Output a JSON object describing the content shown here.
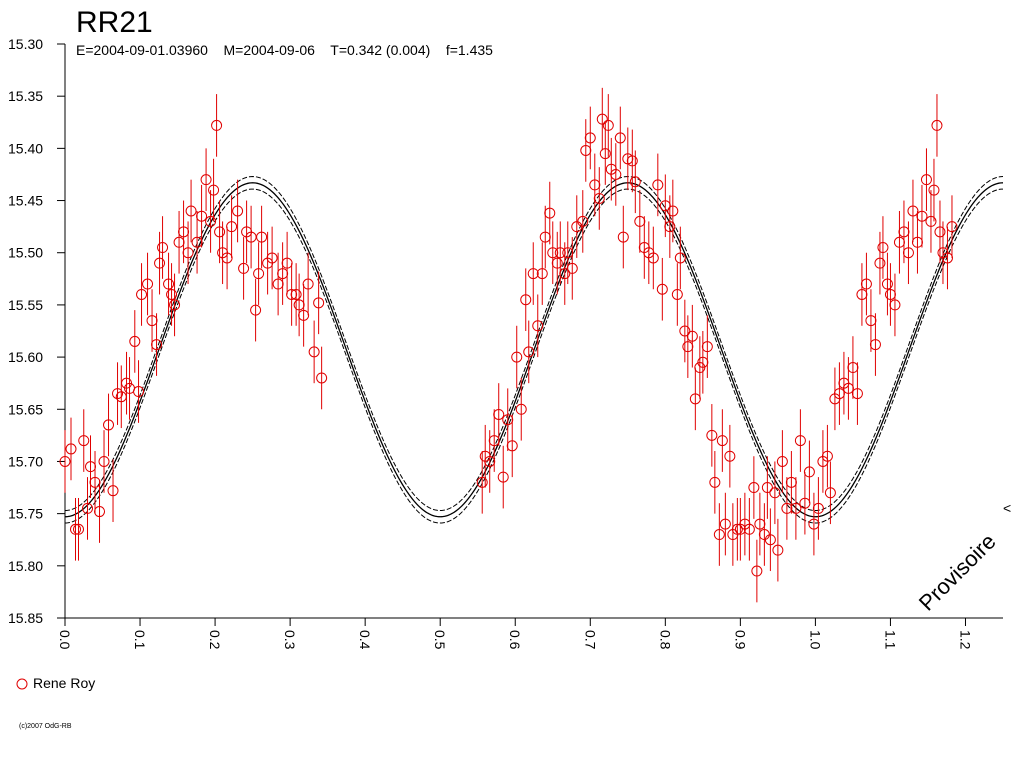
{
  "chart_data": {
    "type": "scatter",
    "title": "RR21",
    "subtitle": "E=2004-09-01.03960    M=2004-09-06    T=0.342 (0.004)    f=1.435",
    "xlim": [
      0.0,
      1.25
    ],
    "ylim": [
      15.3,
      15.85
    ],
    "y_inverted": true,
    "x_ticks": [
      "0.0",
      "0.1",
      "0.2",
      "0.3",
      "0.4",
      "0.5",
      "0.6",
      "0.7",
      "0.8",
      "0.9",
      "1.0",
      "1.1",
      "1.2"
    ],
    "y_ticks": [
      "15.30",
      "15.35",
      "15.40",
      "15.45",
      "15.50",
      "15.55",
      "15.60",
      "15.65",
      "15.70",
      "15.75",
      "15.80",
      "15.85"
    ],
    "grid": false,
    "legend_position": "bottom-left",
    "watermark": "Provisoire",
    "corner_mark": "<",
    "copyright": "(c)2007 OdG-RB",
    "fit_curve": {
      "model": "sinusoid",
      "mean": 15.593,
      "amplitude": 0.16,
      "period": 0.5,
      "phase_of_max_brightness": 0.25,
      "band_halfwidth": 0.006,
      "color": "#000000"
    },
    "series": [
      {
        "name": "Rene Roy",
        "color": "#e00000",
        "marker": "open-circle",
        "error": 0.03,
        "points": [
          [
            0.0,
            15.7
          ],
          [
            0.008,
            15.688
          ],
          [
            0.014,
            15.765
          ],
          [
            0.018,
            15.765
          ],
          [
            0.025,
            15.68
          ],
          [
            0.03,
            15.745
          ],
          [
            0.034,
            15.705
          ],
          [
            0.04,
            15.72
          ],
          [
            0.046,
            15.748
          ],
          [
            0.052,
            15.7
          ],
          [
            0.058,
            15.665
          ],
          [
            0.064,
            15.728
          ],
          [
            0.07,
            15.635
          ],
          [
            0.075,
            15.638
          ],
          [
            0.082,
            15.625
          ],
          [
            0.086,
            15.63
          ],
          [
            0.093,
            15.585
          ],
          [
            0.098,
            15.633
          ],
          [
            0.102,
            15.54
          ],
          [
            0.11,
            15.53
          ],
          [
            0.116,
            15.565
          ],
          [
            0.122,
            15.588
          ],
          [
            0.126,
            15.51
          ],
          [
            0.13,
            15.495
          ],
          [
            0.138,
            15.53
          ],
          [
            0.142,
            15.54
          ],
          [
            0.146,
            15.55
          ],
          [
            0.152,
            15.49
          ],
          [
            0.158,
            15.48
          ],
          [
            0.164,
            15.5
          ],
          [
            0.168,
            15.46
          ],
          [
            0.176,
            15.49
          ],
          [
            0.182,
            15.465
          ],
          [
            0.188,
            15.43
          ],
          [
            0.194,
            15.47
          ],
          [
            0.198,
            15.44
          ],
          [
            0.202,
            15.378
          ],
          [
            0.206,
            15.48
          ],
          [
            0.21,
            15.5
          ],
          [
            0.216,
            15.505
          ],
          [
            0.222,
            15.475
          ],
          [
            0.23,
            15.46
          ],
          [
            0.238,
            15.515
          ],
          [
            0.242,
            15.48
          ],
          [
            0.248,
            15.485
          ],
          [
            0.254,
            15.555
          ],
          [
            0.258,
            15.52
          ],
          [
            0.262,
            15.485
          ],
          [
            0.27,
            15.51
          ],
          [
            0.276,
            15.505
          ],
          [
            0.284,
            15.53
          ],
          [
            0.29,
            15.52
          ],
          [
            0.296,
            15.51
          ],
          [
            0.302,
            15.54
          ],
          [
            0.308,
            15.54
          ],
          [
            0.312,
            15.55
          ],
          [
            0.318,
            15.56
          ],
          [
            0.324,
            15.53
          ],
          [
            0.332,
            15.595
          ],
          [
            0.338,
            15.548
          ],
          [
            0.342,
            15.62
          ],
          [
            0.556,
            15.72
          ],
          [
            0.56,
            15.695
          ],
          [
            0.566,
            15.7
          ],
          [
            0.572,
            15.68
          ],
          [
            0.578,
            15.655
          ],
          [
            0.584,
            15.715
          ],
          [
            0.59,
            15.66
          ],
          [
            0.596,
            15.685
          ],
          [
            0.602,
            15.6
          ],
          [
            0.608,
            15.65
          ],
          [
            0.614,
            15.545
          ],
          [
            0.618,
            15.595
          ],
          [
            0.624,
            15.52
          ],
          [
            0.63,
            15.57
          ],
          [
            0.636,
            15.52
          ],
          [
            0.64,
            15.485
          ],
          [
            0.646,
            15.462
          ],
          [
            0.65,
            15.5
          ],
          [
            0.656,
            15.51
          ],
          [
            0.66,
            15.5
          ],
          [
            0.666,
            15.52
          ],
          [
            0.67,
            15.5
          ],
          [
            0.676,
            15.515
          ],
          [
            0.682,
            15.475
          ],
          [
            0.69,
            15.47
          ],
          [
            0.694,
            15.402
          ],
          [
            0.7,
            15.39
          ],
          [
            0.706,
            15.435
          ],
          [
            0.712,
            15.448
          ],
          [
            0.716,
            15.372
          ],
          [
            0.72,
            15.405
          ],
          [
            0.724,
            15.378
          ],
          [
            0.728,
            15.42
          ],
          [
            0.734,
            15.425
          ],
          [
            0.74,
            15.39
          ],
          [
            0.744,
            15.485
          ],
          [
            0.75,
            15.41
          ],
          [
            0.756,
            15.412
          ],
          [
            0.76,
            15.432
          ],
          [
            0.766,
            15.47
          ],
          [
            0.772,
            15.495
          ],
          [
            0.778,
            15.5
          ],
          [
            0.784,
            15.505
          ],
          [
            0.79,
            15.435
          ],
          [
            0.796,
            15.535
          ],
          [
            0.8,
            15.455
          ],
          [
            0.806,
            15.475
          ],
          [
            0.81,
            15.46
          ],
          [
            0.816,
            15.54
          ],
          [
            0.82,
            15.505
          ],
          [
            0.826,
            15.575
          ],
          [
            0.83,
            15.59
          ],
          [
            0.836,
            15.58
          ],
          [
            0.84,
            15.64
          ],
          [
            0.846,
            15.61
          ],
          [
            0.85,
            15.605
          ],
          [
            0.856,
            15.59
          ],
          [
            0.862,
            15.675
          ],
          [
            0.866,
            15.72
          ],
          [
            0.872,
            15.77
          ],
          [
            0.876,
            15.68
          ],
          [
            0.88,
            15.76
          ],
          [
            0.886,
            15.695
          ],
          [
            0.89,
            15.77
          ],
          [
            0.896,
            15.765
          ],
          [
            0.9,
            15.765
          ],
          [
            0.906,
            15.76
          ],
          [
            0.912,
            15.765
          ],
          [
            0.918,
            15.725
          ],
          [
            0.922,
            15.805
          ],
          [
            0.926,
            15.76
          ],
          [
            0.932,
            15.77
          ],
          [
            0.936,
            15.725
          ],
          [
            0.94,
            15.775
          ],
          [
            0.946,
            15.73
          ],
          [
            0.95,
            15.785
          ],
          [
            0.956,
            15.7
          ],
          [
            0.962,
            15.745
          ],
          [
            0.968,
            15.72
          ],
          [
            0.974,
            15.745
          ],
          [
            0.98,
            15.68
          ],
          [
            0.986,
            15.74
          ],
          [
            0.992,
            15.71
          ],
          [
            0.998,
            15.76
          ],
          [
            1.004,
            15.745
          ],
          [
            1.01,
            15.7
          ],
          [
            1.016,
            15.695
          ],
          [
            1.02,
            15.73
          ],
          [
            1.026,
            15.64
          ],
          [
            1.032,
            15.635
          ],
          [
            1.038,
            15.625
          ],
          [
            1.044,
            15.63
          ],
          [
            1.05,
            15.61
          ],
          [
            1.056,
            15.635
          ],
          [
            1.062,
            15.54
          ],
          [
            1.068,
            15.53
          ],
          [
            1.074,
            15.565
          ],
          [
            1.08,
            15.588
          ],
          [
            1.086,
            15.51
          ],
          [
            1.09,
            15.495
          ],
          [
            1.096,
            15.53
          ],
          [
            1.1,
            15.54
          ],
          [
            1.106,
            15.55
          ],
          [
            1.112,
            15.49
          ],
          [
            1.118,
            15.48
          ],
          [
            1.124,
            15.5
          ],
          [
            1.13,
            15.46
          ],
          [
            1.136,
            15.49
          ],
          [
            1.142,
            15.465
          ],
          [
            1.148,
            15.43
          ],
          [
            1.154,
            15.47
          ],
          [
            1.158,
            15.44
          ],
          [
            1.162,
            15.378
          ],
          [
            1.166,
            15.48
          ],
          [
            1.17,
            15.5
          ],
          [
            1.176,
            15.505
          ],
          [
            1.182,
            15.475
          ]
        ]
      }
    ]
  },
  "legend": {
    "label": "Rene Roy"
  }
}
